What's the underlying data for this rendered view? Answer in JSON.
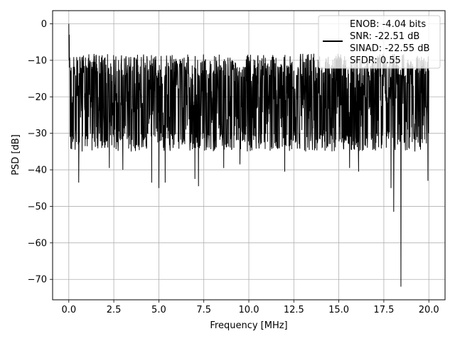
{
  "chart_data": {
    "type": "line",
    "xlabel": "Frequency [MHz]",
    "ylabel": "PSD [dB]",
    "xlim": [
      -0.9,
      20.9
    ],
    "ylim": [
      -75.6,
      3.6
    ],
    "xticks": [
      0.0,
      2.5,
      5.0,
      7.5,
      10.0,
      12.5,
      15.0,
      17.5,
      20.0
    ],
    "xtick_labels": [
      "0.0",
      "2.5",
      "5.0",
      "7.5",
      "10.0",
      "12.5",
      "15.0",
      "17.5",
      "20.0"
    ],
    "yticks": [
      0,
      -10,
      -20,
      -30,
      -40,
      -50,
      -60,
      -70
    ],
    "ytick_labels": [
      "0",
      "−10",
      "−20",
      "−30",
      "−40",
      "−50",
      "−60",
      "−70"
    ],
    "grid": true,
    "legend_position": "top-right",
    "legend_lines": [
      "ENOB: -4.04 bits",
      "SNR: -22.51 dB",
      "SINAD: -22.55 dB",
      "SFDR: 0.55"
    ],
    "line_color": "#000000",
    "series_summary": {
      "x_range": [
        0.0,
        20.0
      ],
      "typical_band": [
        -30,
        -10
      ],
      "peak": {
        "x": 0.0,
        "y": 0.0
      },
      "dips": [
        {
          "x": 0.35,
          "y": -34.5
        },
        {
          "x": 0.55,
          "y": -43.5
        },
        {
          "x": 2.25,
          "y": -39.5
        },
        {
          "x": 3.0,
          "y": -40.0
        },
        {
          "x": 4.6,
          "y": -43.5
        },
        {
          "x": 5.0,
          "y": -45.0
        },
        {
          "x": 5.35,
          "y": -43.5
        },
        {
          "x": 7.0,
          "y": -42.5
        },
        {
          "x": 7.2,
          "y": -44.5
        },
        {
          "x": 8.6,
          "y": -39.5
        },
        {
          "x": 9.5,
          "y": -38.5
        },
        {
          "x": 12.0,
          "y": -40.5
        },
        {
          "x": 15.6,
          "y": -39.5
        },
        {
          "x": 16.1,
          "y": -40.5
        },
        {
          "x": 17.9,
          "y": -45.0
        },
        {
          "x": 18.05,
          "y": -51.5
        },
        {
          "x": 18.45,
          "y": -72.0
        },
        {
          "x": 19.95,
          "y": -43.0
        }
      ]
    }
  }
}
